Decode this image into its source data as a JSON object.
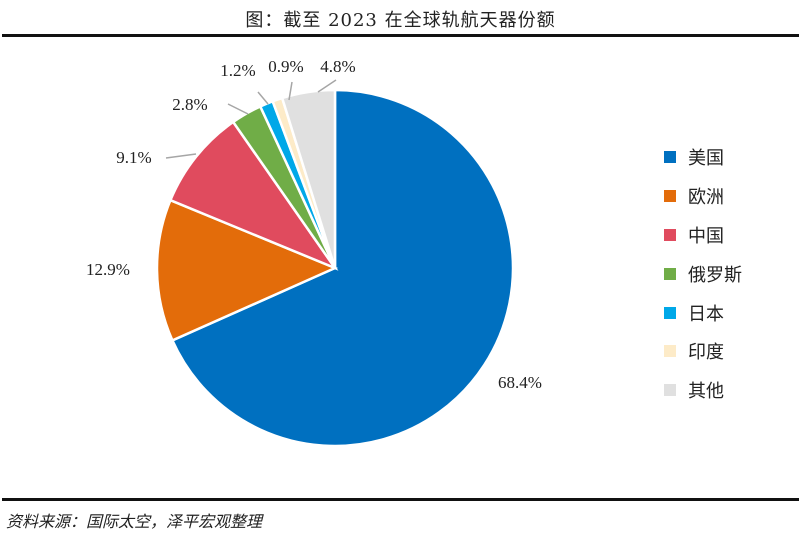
{
  "title": "图：截至 2023 在全球轨航天器份额",
  "source": "资料来源：国际太空，泽平宏观整理",
  "chart_data": {
    "type": "pie",
    "series": [
      {
        "name": "美国",
        "value": 68.4,
        "label": "68.4%",
        "color": "#0070C0"
      },
      {
        "name": "欧洲",
        "value": 12.9,
        "label": "12.9%",
        "color": "#E36C0A"
      },
      {
        "name": "中国",
        "value": 9.1,
        "label": "9.1%",
        "color": "#E04B5E"
      },
      {
        "name": "俄罗斯",
        "value": 2.8,
        "label": "2.8%",
        "color": "#70AD47"
      },
      {
        "name": "日本",
        "value": 1.2,
        "label": "1.2%",
        "color": "#00A8E8"
      },
      {
        "name": "印度",
        "value": 0.9,
        "label": "0.9%",
        "color": "#FDEBC8"
      },
      {
        "name": "其他",
        "value": 4.8,
        "label": "4.8%",
        "color": "#E0E0E0"
      }
    ],
    "legend_position": "right"
  }
}
